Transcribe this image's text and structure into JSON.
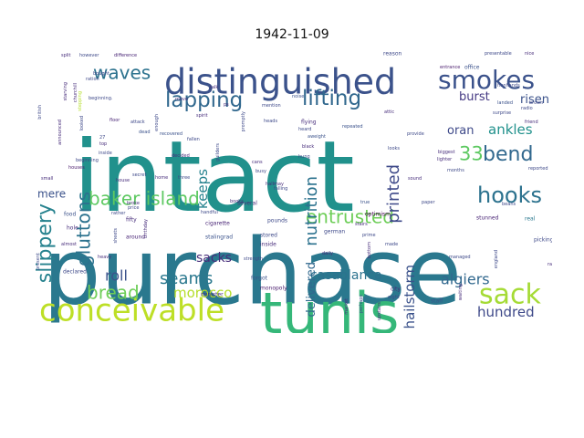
{
  "title": "1942-11-09",
  "words": [
    {
      "text": "intact",
      "color": "#21918c"
    },
    {
      "text": "purchase",
      "color": "#2a788e"
    },
    {
      "text": "tunis",
      "color": "#35b779"
    },
    {
      "text": "distinguished",
      "color": "#3b528b"
    },
    {
      "text": "conceivable",
      "color": "#bddf26"
    },
    {
      "text": "smokes",
      "color": "#3b528b"
    },
    {
      "text": "sack",
      "color": "#a5db36"
    },
    {
      "text": "lapping",
      "color": "#31688e"
    },
    {
      "text": "lifting",
      "color": "#31688e"
    },
    {
      "text": "waves",
      "color": "#2c728e"
    },
    {
      "text": "baker island",
      "color": "#5ec962"
    },
    {
      "text": "entrusted",
      "color": "#6ece58"
    },
    {
      "text": "hooks",
      "color": "#2c728e"
    },
    {
      "text": "bend",
      "color": "#31688e"
    },
    {
      "text": "slippery",
      "color": "#26828e"
    },
    {
      "text": "gluttons",
      "color": "#2c728e"
    },
    {
      "text": "33",
      "color": "#5ec962"
    },
    {
      "text": "nutrition",
      "color": "#2c728e"
    },
    {
      "text": "printed",
      "color": "#3e4989"
    },
    {
      "text": "keeps",
      "color": "#26828e"
    },
    {
      "text": "bread",
      "color": "#6ece58"
    },
    {
      "text": "seams",
      "color": "#2a788e"
    },
    {
      "text": "morocco",
      "color": "#b5de2b"
    },
    {
      "text": "casablanca",
      "color": "#2c728e"
    },
    {
      "text": "algiers",
      "color": "#31688e"
    },
    {
      "text": "hundred",
      "color": "#3e4989"
    },
    {
      "text": "roll",
      "color": "#3b528b"
    },
    {
      "text": "sacks",
      "color": "#472d7b"
    },
    {
      "text": "hailstorm",
      "color": "#3b528b"
    },
    {
      "text": "delivered",
      "color": "#31688e"
    },
    {
      "text": "oran",
      "color": "#3e4989"
    },
    {
      "text": "burst",
      "color": "#443983"
    },
    {
      "text": "risen",
      "color": "#3b528b"
    },
    {
      "text": "ankles",
      "color": "#21918c"
    },
    {
      "text": "mere",
      "color": "#3b528b"
    },
    {
      "text": "fifty",
      "color": "#472d7b"
    },
    {
      "text": "several",
      "color": "#472d7b"
    },
    {
      "text": "cigarette",
      "color": "#482475"
    },
    {
      "text": "pounds",
      "color": "#3e4989"
    },
    {
      "text": "stalingrad",
      "color": "#3b528b"
    },
    {
      "text": "stored",
      "color": "#3e4989"
    },
    {
      "text": "inside",
      "color": "#472d7b"
    },
    {
      "text": "german",
      "color": "#3e4989"
    },
    {
      "text": "optimism",
      "color": "#440154"
    },
    {
      "text": "stunned",
      "color": "#482475"
    },
    {
      "text": "picking",
      "color": "#3e4989"
    },
    {
      "text": "real",
      "color": "#2a788e"
    },
    {
      "text": "food",
      "color": "#3b528b"
    },
    {
      "text": "hole",
      "color": "#472d7b"
    },
    {
      "text": "around",
      "color": "#482475"
    },
    {
      "text": "declared",
      "color": "#3e4989"
    },
    {
      "text": "forgot",
      "color": "#3b528b"
    },
    {
      "text": "monopoly",
      "color": "#481a6c"
    },
    {
      "text": "minister",
      "color": "#472d7b"
    },
    {
      "text": "staff",
      "color": "#3b528b"
    },
    {
      "text": "city",
      "color": "#472d7b"
    },
    {
      "text": "bought",
      "color": "#3e4989"
    },
    {
      "text": "churchill",
      "color": "#472d7b"
    },
    {
      "text": "looked",
      "color": "#3e4989"
    },
    {
      "text": "reason",
      "color": "#3e4989"
    },
    {
      "text": "entrance",
      "color": "#481a6c"
    },
    {
      "text": "office",
      "color": "#3b528b"
    },
    {
      "text": "hunhands",
      "color": "#3e4989"
    },
    {
      "text": "landed",
      "color": "#3b528b"
    },
    {
      "text": "brown",
      "color": "#3e4989"
    },
    {
      "text": "however",
      "color": "#3e4989"
    },
    {
      "text": "difference",
      "color": "#482475"
    },
    {
      "text": "split",
      "color": "#472d7b"
    },
    {
      "text": "stepping",
      "color": "#b5de2b"
    },
    {
      "text": "beginning",
      "color": "#3e4989"
    },
    {
      "text": "houses",
      "color": "#481a6c"
    },
    {
      "text": "heads",
      "color": "#3e4989"
    },
    {
      "text": "flying",
      "color": "#472d7b"
    },
    {
      "text": "heard",
      "color": "#3e4989"
    },
    {
      "text": "aweight",
      "color": "#3b528b"
    },
    {
      "text": "black",
      "color": "#472d7b"
    },
    {
      "text": "hung",
      "color": "#3e4989"
    },
    {
      "text": "repeated",
      "color": "#3b528b"
    },
    {
      "text": "looks",
      "color": "#3e4989"
    },
    {
      "text": "lighter",
      "color": "#472d7b"
    },
    {
      "text": "months",
      "color": "#3e4989"
    },
    {
      "text": "biggest",
      "color": "#472d7b"
    },
    {
      "text": "provide",
      "color": "#3e4989"
    },
    {
      "text": "surprise",
      "color": "#3e4989"
    },
    {
      "text": "recovered",
      "color": "#3b528b"
    },
    {
      "text": "fallen",
      "color": "#3e4989"
    },
    {
      "text": "decided",
      "color": "#472d7b"
    },
    {
      "text": "dead",
      "color": "#3b528b"
    },
    {
      "text": "attack",
      "color": "#3e4989"
    },
    {
      "text": "floor",
      "color": "#482475"
    },
    {
      "text": "ration",
      "color": "#3e4989"
    },
    {
      "text": "move",
      "color": "#472d7b"
    },
    {
      "text": "mention",
      "color": "#3e4989"
    },
    {
      "text": "talk",
      "color": "#472d7b"
    },
    {
      "text": "noise",
      "color": "#3b528b"
    },
    {
      "text": "handful",
      "color": "#3e4989"
    },
    {
      "text": "books",
      "color": "#472d7b"
    },
    {
      "text": "rather",
      "color": "#3e4989"
    },
    {
      "text": "heavy",
      "color": "#472d7b"
    },
    {
      "text": "three",
      "color": "#3e4989"
    },
    {
      "text": "home",
      "color": "#472d7b"
    },
    {
      "text": "busy",
      "color": "#3e4989"
    },
    {
      "text": "hallmay",
      "color": "#472d7b"
    },
    {
      "text": "falling",
      "color": "#3e4989"
    },
    {
      "text": "true",
      "color": "#3b528b"
    },
    {
      "text": "paper",
      "color": "#3e4989"
    },
    {
      "text": "stairs",
      "color": "#472d7b"
    },
    {
      "text": "prime",
      "color": "#3e4989"
    },
    {
      "text": "bottom",
      "color": "#472d7b"
    },
    {
      "text": "made",
      "color": "#3e4989"
    },
    {
      "text": "daily",
      "color": "#472d7b"
    },
    {
      "text": "managed",
      "color": "#3e4989"
    },
    {
      "text": "market",
      "color": "#472d7b"
    },
    {
      "text": "perhaps",
      "color": "#3e4989"
    },
    {
      "text": "upstairs",
      "color": "#472d7b"
    },
    {
      "text": "eight",
      "color": "#3e4989"
    },
    {
      "text": "waiting",
      "color": "#472d7b"
    },
    {
      "text": "england",
      "color": "#3e4989"
    },
    {
      "text": "raise",
      "color": "#472d7b"
    },
    {
      "text": "beans",
      "color": "#3e4989"
    },
    {
      "text": "present",
      "color": "#3e4989"
    },
    {
      "text": "small",
      "color": "#472d7b"
    },
    {
      "text": "secret",
      "color": "#3e4989"
    },
    {
      "text": "house",
      "color": "#472d7b"
    },
    {
      "text": "british",
      "color": "#3e4989"
    },
    {
      "text": "starving",
      "color": "#472d7b"
    },
    {
      "text": "beginning.",
      "color": "#3e4989"
    },
    {
      "text": "spirit",
      "color": "#472d7b"
    },
    {
      "text": "guilders",
      "color": "#3e4989"
    },
    {
      "text": "cans",
      "color": "#472d7b"
    },
    {
      "text": "promptly",
      "color": "#3e4989"
    },
    {
      "text": "attic",
      "color": "#472d7b"
    },
    {
      "text": "radio",
      "color": "#3e4989"
    },
    {
      "text": "friend",
      "color": "#472d7b"
    },
    {
      "text": "presentable",
      "color": "#3e4989"
    },
    {
      "text": "nice",
      "color": "#472d7b"
    },
    {
      "text": "27",
      "color": "#3e4989"
    },
    {
      "text": "top",
      "color": "#472d7b"
    },
    {
      "text": "inside",
      "color": "#3e4989"
    },
    {
      "text": "broke",
      "color": "#472d7b"
    },
    {
      "text": "price",
      "color": "#3e4989"
    },
    {
      "text": "birthday",
      "color": "#472d7b"
    },
    {
      "text": "reported",
      "color": "#3e4989"
    },
    {
      "text": "sound",
      "color": "#472d7b"
    },
    {
      "text": "strength",
      "color": "#3e4989"
    },
    {
      "text": "almost",
      "color": "#472d7b"
    },
    {
      "text": "sheets",
      "color": "#3e4989"
    },
    {
      "text": "announced",
      "color": "#472d7b"
    },
    {
      "text": "enough",
      "color": "#3e4989"
    },
    {
      "text": "ps",
      "color": "#472d7b"
    }
  ]
}
